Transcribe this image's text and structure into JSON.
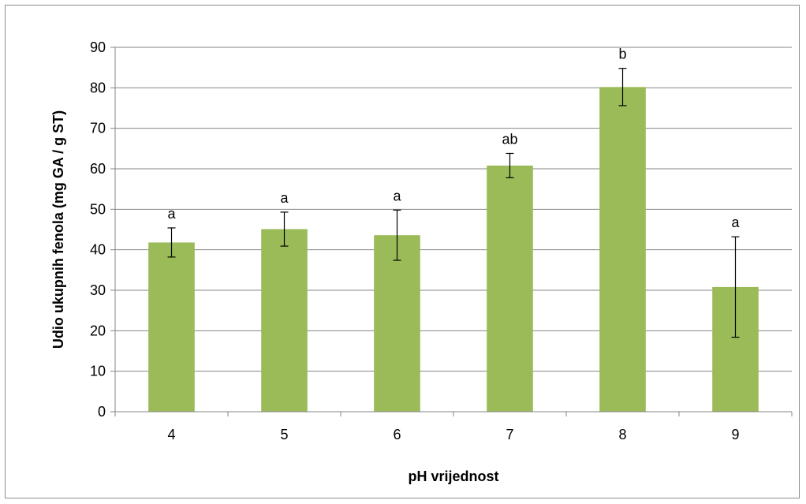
{
  "chart_data": {
    "type": "bar",
    "title": "",
    "xlabel": "pH vrijednost",
    "ylabel": "Udio ukupnih fenola (mg GA / g ST)",
    "categories": [
      "4",
      "5",
      "6",
      "7",
      "8",
      "9"
    ],
    "values": [
      41.8,
      45.1,
      43.6,
      60.8,
      80.2,
      30.8
    ],
    "errors": [
      3.6,
      4.2,
      6.2,
      3.0,
      4.6,
      12.4
    ],
    "significance_labels": [
      "a",
      "a",
      "a",
      "ab",
      "b",
      "a"
    ],
    "ylim": [
      0,
      90
    ],
    "yticks": [
      "0",
      "10",
      "20",
      "30",
      "40",
      "50",
      "60",
      "70",
      "80",
      "90"
    ],
    "grid": true,
    "legend": "none",
    "bar_color": "#9bbb59"
  }
}
